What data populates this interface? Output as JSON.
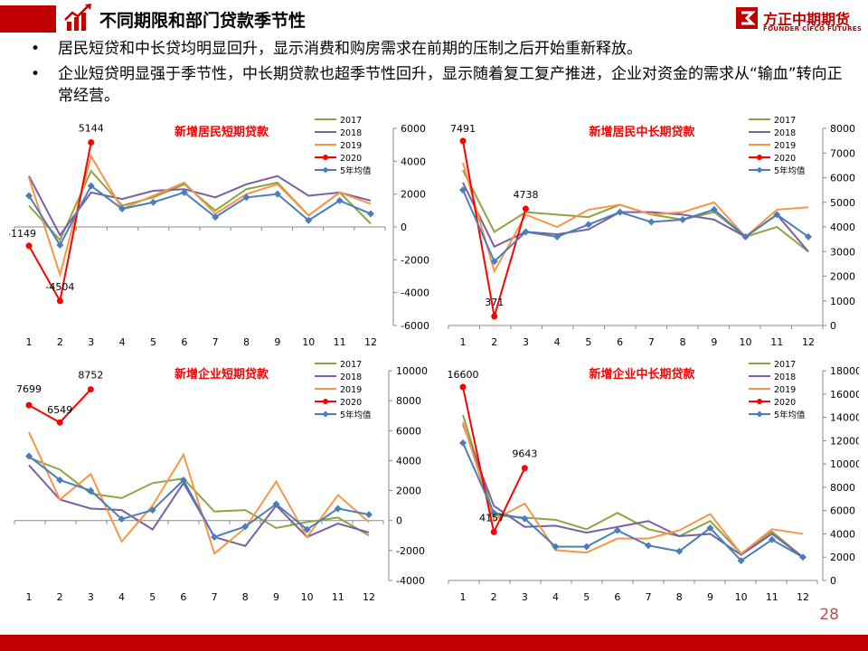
{
  "header": {
    "title": "不同期限和部门贷款季节性"
  },
  "logo": {
    "name": "方正中期期货",
    "sub": "FOUNDER CIFCO FUTURES"
  },
  "bullets": [
    "居民短贷和中长贷均明显回升，显示消费和购房需求在前期的压制之后开始重新释放。",
    "企业短贷明显强于季节性，中长期贷款也超季节性回升，显示随着复工复产推进，企业对资金的需求从“输血”转向正常经营。"
  ],
  "page_number": "28",
  "colors": {
    "accent": "#c00000",
    "s2017": "#8ea443",
    "s2018": "#7b5ea3",
    "s2019": "#f79646",
    "s2020": "#ff0000",
    "savg": "#4a7ebb",
    "title_red": "#ff0000"
  },
  "chart_data": [
    {
      "type": "line",
      "title": "新增居民短期贷款",
      "x": [
        "1",
        "2",
        "3",
        "4",
        "5",
        "6",
        "7",
        "8",
        "9",
        "10",
        "11",
        "12"
      ],
      "ylim": [
        -6000,
        6000
      ],
      "yticks": [
        "6000",
        "4000",
        "2000",
        "0",
        "-2000",
        "-4000",
        "-6000"
      ],
      "legend": [
        "2017",
        "2018",
        "2019",
        "2020",
        "5年均值"
      ],
      "series": [
        {
          "name": "2017",
          "values": [
            1300,
            -800,
            3400,
            1300,
            1800,
            2600,
            1000,
            2300,
            2700,
            700,
            2100,
            200
          ]
        },
        {
          "name": "2018",
          "values": [
            3100,
            -500,
            2100,
            1700,
            2200,
            2300,
            1800,
            2600,
            3100,
            1900,
            2100,
            1600
          ]
        },
        {
          "name": "2019",
          "values": [
            3000,
            -2900,
            4300,
            1100,
            1900,
            2700,
            800,
            2000,
            2600,
            700,
            2100,
            1400
          ]
        },
        {
          "name": "2020",
          "values": [
            -1149,
            -4504,
            5144
          ]
        },
        {
          "name": "5年均值",
          "values": [
            1900,
            -1100,
            2500,
            1100,
            1500,
            2100,
            600,
            1800,
            2000,
            400,
            1600,
            800
          ]
        }
      ],
      "labels": [
        "-1149",
        "-4504",
        "5144"
      ]
    },
    {
      "type": "line",
      "title": "新增居民中长期贷款",
      "x": [
        "1",
        "2",
        "3",
        "4",
        "5",
        "6",
        "7",
        "8",
        "9",
        "10",
        "11",
        "12"
      ],
      "ylim": [
        0,
        8000
      ],
      "yticks": [
        "8000",
        "7000",
        "6000",
        "5000",
        "4000",
        "3000",
        "2000",
        "1000",
        "0"
      ],
      "legend": [
        "2017",
        "2018",
        "2019",
        "2020",
        "5年均值"
      ],
      "series": [
        {
          "name": "2017",
          "values": [
            6300,
            3800,
            4600,
            4500,
            4400,
            4900,
            4500,
            4300,
            4600,
            3600,
            4000,
            3000
          ]
        },
        {
          "name": "2018",
          "values": [
            5800,
            3200,
            3800,
            3700,
            3900,
            4600,
            4600,
            4500,
            4300,
            3600,
            4500,
            3000
          ]
        },
        {
          "name": "2019",
          "values": [
            6600,
            2200,
            4500,
            4000,
            4700,
            4900,
            4500,
            4600,
            5000,
            3600,
            4700,
            4800
          ]
        },
        {
          "name": "2020",
          "values": [
            7491,
            371,
            4738
          ]
        },
        {
          "name": "5年均值",
          "values": [
            5500,
            2600,
            3800,
            3600,
            4100,
            4600,
            4200,
            4300,
            4700,
            3600,
            4500,
            3600
          ]
        }
      ],
      "labels": [
        "7491",
        "371",
        "4738"
      ]
    },
    {
      "type": "line",
      "title": "新增企业短期贷款",
      "x": [
        "1",
        "2",
        "3",
        "4",
        "5",
        "6",
        "7",
        "8",
        "9",
        "10",
        "11",
        "12"
      ],
      "ylim": [
        -4000,
        10000
      ],
      "yticks": [
        "10000",
        "8000",
        "6000",
        "4000",
        "2000",
        "0",
        "-2000",
        "-4000"
      ],
      "legend": [
        "2017",
        "2018",
        "2019",
        "2020",
        "5年均值"
      ],
      "series": [
        {
          "name": "2017",
          "values": [
            4200,
            3400,
            1800,
            1500,
            2500,
            2800,
            600,
            700,
            -500,
            -100,
            200,
            -1000
          ]
        },
        {
          "name": "2018",
          "values": [
            3700,
            1400,
            800,
            700,
            -600,
            2500,
            -1100,
            -1700,
            1000,
            -1100,
            -200,
            -800
          ]
        },
        {
          "name": "2019",
          "values": [
            5900,
            1400,
            3100,
            -1400,
            1000,
            4400,
            -2200,
            -500,
            2600,
            -1100,
            1700,
            -100
          ]
        },
        {
          "name": "2020",
          "values": [
            7699,
            6549,
            8752
          ]
        },
        {
          "name": "5年均值",
          "values": [
            4300,
            2700,
            2000,
            100,
            700,
            2700,
            -1100,
            -400,
            1100,
            -600,
            800,
            400
          ]
        }
      ],
      "labels": [
        "7699",
        "6549",
        "8752"
      ]
    },
    {
      "type": "line",
      "title": "新增企业中长期贷款",
      "x": [
        "1",
        "2",
        "3",
        "4",
        "5",
        "6",
        "7",
        "8",
        "9",
        "10",
        "11",
        "12"
      ],
      "ylim": [
        0,
        18000
      ],
      "yticks": [
        "18000",
        "16000",
        "14000",
        "12000",
        "10000",
        "8000",
        "6000",
        "4000",
        "2000",
        "0"
      ],
      "legend": [
        "2017",
        "2018",
        "2019",
        "2020",
        "5年均值"
      ],
      "series": [
        {
          "name": "2017",
          "values": [
            14200,
            5600,
            5400,
            5200,
            4400,
            5800,
            4400,
            3800,
            5100,
            2300,
            4200,
            2000
          ]
        },
        {
          "name": "2018",
          "values": [
            13400,
            6400,
            4600,
            4700,
            4100,
            4600,
            5100,
            3800,
            4000,
            2200,
            4000,
            2000
          ]
        },
        {
          "name": "2019",
          "values": [
            13600,
            5200,
            6600,
            2600,
            2400,
            3600,
            3600,
            4300,
            5700,
            2300,
            4400,
            4000
          ]
        },
        {
          "name": "2020",
          "values": [
            16600,
            4157,
            9643
          ]
        },
        {
          "name": "5年均值",
          "values": [
            11800,
            5800,
            5300,
            2900,
            2900,
            4300,
            3000,
            2500,
            4500,
            1700,
            3500,
            2000
          ]
        }
      ],
      "labels": [
        "16600",
        "4157",
        "9643"
      ]
    }
  ]
}
